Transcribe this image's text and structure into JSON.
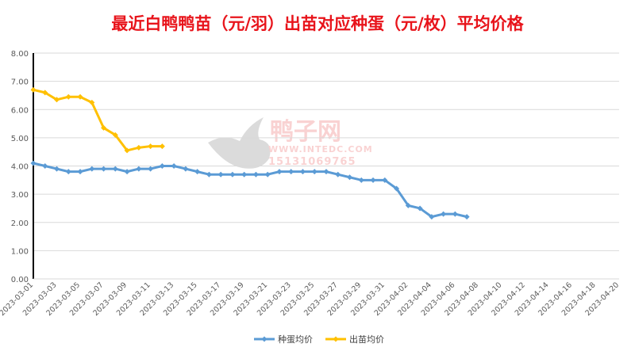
{
  "chart_data": {
    "type": "line",
    "title": "最近白鸭鸭苗（元/羽）出苗对应种蛋（元/枚）平均价格",
    "xlim": [
      "2023-03-01",
      "2023-04-20"
    ],
    "x_ticks": [
      "2023-03-01",
      "2023-03-03",
      "2023-03-05",
      "2023-03-07",
      "2023-03-09",
      "2023-03-11",
      "2023-03-13",
      "2023-03-15",
      "2023-03-17",
      "2023-03-19",
      "2023-03-21",
      "2023-03-23",
      "2023-03-25",
      "2023-03-27",
      "2023-03-29",
      "2023-03-31",
      "2023-04-02",
      "2023-04-04",
      "2023-04-06",
      "2023-04-08",
      "2023-04-10",
      "2023-04-12",
      "2023-04-14",
      "2023-04-16",
      "2023-04-18",
      "2023-04-20"
    ],
    "ylim": [
      0,
      8
    ],
    "y_ticks": [
      "0.00",
      "1.00",
      "2.00",
      "3.00",
      "4.00",
      "5.00",
      "6.00",
      "7.00",
      "8.00"
    ],
    "grid": true,
    "legend": "bottom",
    "start_date": "2023-03-01",
    "series": [
      {
        "name": "种蛋均价",
        "color": "#5b9bd5",
        "values": [
          4.1,
          4.0,
          3.9,
          3.8,
          3.8,
          3.9,
          3.9,
          3.9,
          3.8,
          3.9,
          3.9,
          4.0,
          4.0,
          3.9,
          3.8,
          3.7,
          3.7,
          3.7,
          3.7,
          3.7,
          3.7,
          3.8,
          3.8,
          3.8,
          3.8,
          3.8,
          3.7,
          3.6,
          3.5,
          3.5,
          3.5,
          3.2,
          2.6,
          2.5,
          2.2,
          2.3,
          2.3,
          2.2
        ]
      },
      {
        "name": "出苗均价",
        "color": "#ffc000",
        "values": [
          6.7,
          6.6,
          6.35,
          6.45,
          6.45,
          6.25,
          5.35,
          5.1,
          4.55,
          4.65,
          4.7,
          4.7
        ]
      }
    ]
  },
  "watermark": {
    "name": "鸭子网",
    "url": "WWW.INTEDC.COM",
    "phone": "15131069765"
  }
}
